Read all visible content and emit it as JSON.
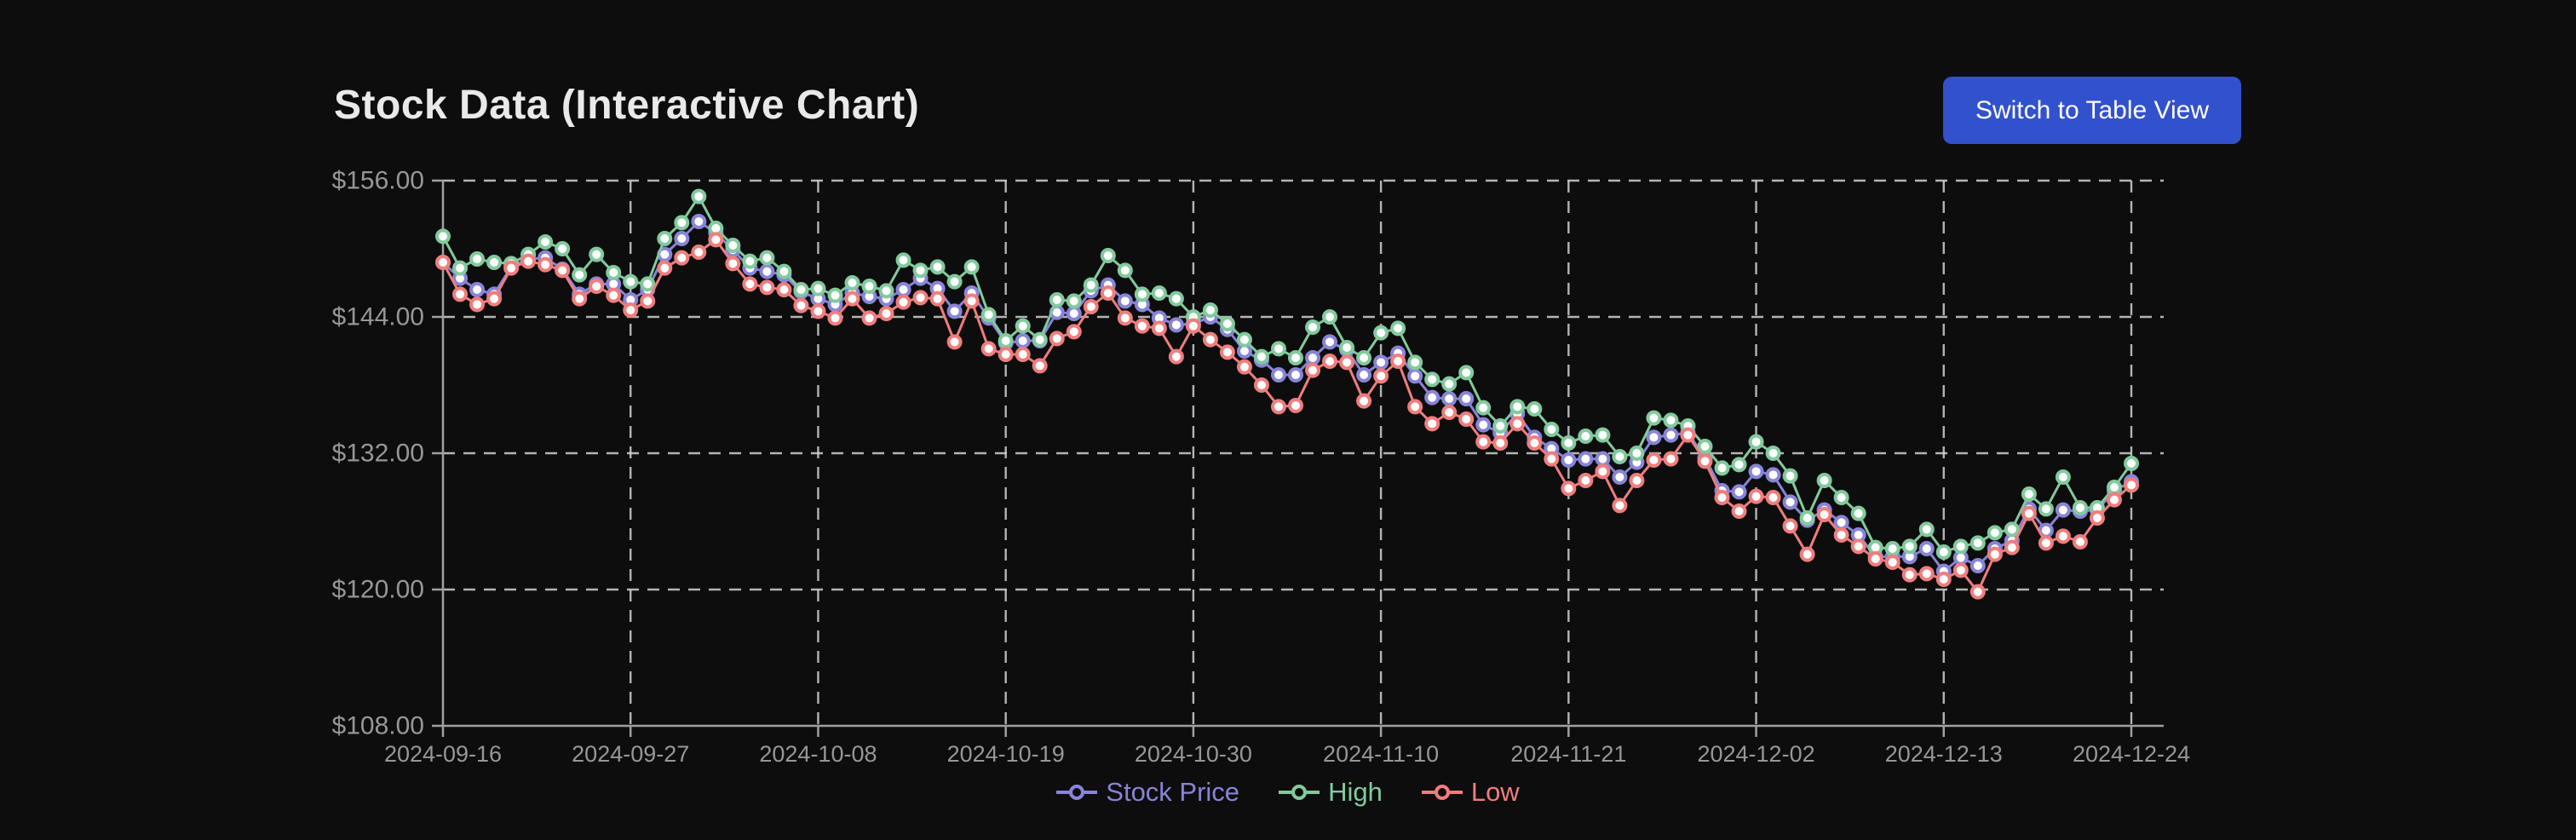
{
  "page": {
    "background": "#0d0d0d"
  },
  "header": {
    "title": "Stock Data (Interactive Chart)",
    "view_toggle_label": "Switch to Table View",
    "button_color": "#3251cd",
    "button_text_color": "#ffffff",
    "title_color": "#e9e9e9"
  },
  "chart_data": {
    "type": "line",
    "title": "Stock Data (Interactive Chart)",
    "grid": "dashed",
    "legend_position": "bottom",
    "ylim": [
      108,
      156
    ],
    "y_ticks": [
      156,
      144,
      132,
      120,
      108
    ],
    "y_tick_prefix": "$",
    "x_tick_indices": [
      0,
      11,
      22,
      33,
      44,
      55,
      66,
      77,
      88,
      99
    ],
    "axis_color": "#a0a0a0",
    "grid_color": "#d2d2d2",
    "tick_label_color": "#979797",
    "marker_fill": "#ffffff",
    "x": [
      "2024-09-16",
      "2024-09-17",
      "2024-09-18",
      "2024-09-19",
      "2024-09-20",
      "2024-09-21",
      "2024-09-22",
      "2024-09-23",
      "2024-09-24",
      "2024-09-25",
      "2024-09-26",
      "2024-09-27",
      "2024-09-28",
      "2024-09-29",
      "2024-09-30",
      "2024-10-01",
      "2024-10-02",
      "2024-10-03",
      "2024-10-04",
      "2024-10-05",
      "2024-10-06",
      "2024-10-07",
      "2024-10-08",
      "2024-10-09",
      "2024-10-10",
      "2024-10-11",
      "2024-10-12",
      "2024-10-13",
      "2024-10-14",
      "2024-10-15",
      "2024-10-16",
      "2024-10-17",
      "2024-10-18",
      "2024-10-19",
      "2024-10-20",
      "2024-10-21",
      "2024-10-22",
      "2024-10-23",
      "2024-10-24",
      "2024-10-25",
      "2024-10-26",
      "2024-10-27",
      "2024-10-28",
      "2024-10-29",
      "2024-10-30",
      "2024-10-31",
      "2024-11-01",
      "2024-11-02",
      "2024-11-03",
      "2024-11-04",
      "2024-11-05",
      "2024-11-06",
      "2024-11-07",
      "2024-11-08",
      "2024-11-09",
      "2024-11-10",
      "2024-11-11",
      "2024-11-12",
      "2024-11-13",
      "2024-11-14",
      "2024-11-15",
      "2024-11-16",
      "2024-11-17",
      "2024-11-18",
      "2024-11-19",
      "2024-11-20",
      "2024-11-21",
      "2024-11-22",
      "2024-11-23",
      "2024-11-24",
      "2024-11-25",
      "2024-11-26",
      "2024-11-27",
      "2024-11-28",
      "2024-11-29",
      "2024-11-30",
      "2024-12-01",
      "2024-12-02",
      "2024-12-03",
      "2024-12-04",
      "2024-12-05",
      "2024-12-06",
      "2024-12-07",
      "2024-12-08",
      "2024-12-09",
      "2024-12-10",
      "2024-12-11",
      "2024-12-12",
      "2024-12-13",
      "2024-12-14",
      "2024-12-15",
      "2024-12-16",
      "2024-12-17",
      "2024-12-18",
      "2024-12-19",
      "2024-12-20",
      "2024-12-21",
      "2024-12-22",
      "2024-12-23",
      "2024-12-24"
    ],
    "series": [
      {
        "name": "Stock Price",
        "color": "#8884d8",
        "values": [
          148.8,
          147.4,
          146.4,
          146.0,
          148.4,
          149.1,
          149.2,
          148.2,
          146.0,
          146.9,
          146.9,
          145.5,
          146.4,
          149.5,
          150.9,
          152.4,
          151.4,
          149.9,
          148.3,
          148.0,
          147.7,
          146.2,
          145.6,
          145.1,
          146.1,
          145.8,
          145.6,
          146.4,
          147.4,
          146.5,
          144.5,
          146.1,
          143.9,
          141.7,
          141.9,
          141.9,
          144.4,
          144.3,
          146.3,
          146.8,
          145.4,
          145.1,
          143.9,
          143.3,
          143.4,
          144.0,
          142.9,
          141.0,
          140.2,
          138.9,
          138.9,
          140.4,
          141.8,
          141.1,
          138.9,
          140.0,
          140.8,
          138.8,
          136.9,
          136.8,
          136.8,
          134.5,
          133.8,
          135.5,
          133.4,
          132.4,
          131.4,
          131.5,
          131.5,
          129.9,
          131.2,
          133.4,
          133.6,
          133.8,
          131.6,
          128.7,
          128.6,
          130.4,
          130.1,
          127.7,
          126.1,
          127.0,
          125.9,
          124.8,
          122.9,
          122.9,
          122.9,
          123.6,
          121.6,
          122.8,
          122.1,
          123.6,
          124.3,
          127.1,
          125.2,
          127.0,
          126.9,
          127.0,
          128.7,
          129.5
        ]
      },
      {
        "name": "High",
        "color": "#82ca9d",
        "values": [
          151.1,
          148.3,
          149.1,
          148.8,
          148.7,
          149.5,
          150.6,
          150.0,
          147.7,
          149.5,
          147.9,
          147.1,
          146.9,
          150.9,
          152.3,
          154.6,
          151.8,
          150.3,
          148.9,
          149.2,
          148.0,
          146.4,
          146.5,
          145.9,
          147.0,
          146.7,
          146.3,
          149.0,
          148.1,
          148.4,
          147.1,
          148.4,
          144.2,
          141.9,
          143.2,
          142.0,
          145.5,
          145.4,
          146.8,
          149.4,
          148.1,
          146.0,
          146.1,
          145.6,
          144.0,
          144.6,
          143.4,
          142.0,
          140.5,
          141.2,
          140.4,
          143.1,
          144.0,
          141.3,
          140.4,
          142.6,
          143.0,
          140.0,
          138.5,
          138.1,
          139.1,
          136.0,
          134.4,
          136.1,
          135.9,
          134.1,
          132.9,
          133.5,
          133.6,
          131.7,
          132.0,
          135.1,
          134.9,
          134.4,
          132.6,
          130.7,
          131.0,
          133.0,
          132.0,
          130.0,
          126.3,
          129.6,
          128.1,
          126.7,
          123.7,
          123.6,
          123.8,
          125.3,
          123.3,
          123.8,
          124.1,
          125.0,
          125.3,
          128.4,
          127.1,
          129.9,
          127.2,
          127.2,
          129.0,
          131.1
        ]
      },
      {
        "name": "Low",
        "color": "#f07d7d",
        "values": [
          148.8,
          146.0,
          145.1,
          145.6,
          148.3,
          148.9,
          148.6,
          148.1,
          145.6,
          146.7,
          145.9,
          144.6,
          145.4,
          148.3,
          149.2,
          149.7,
          150.8,
          148.7,
          146.9,
          146.6,
          146.4,
          145.0,
          144.5,
          143.9,
          145.6,
          143.9,
          144.3,
          145.3,
          145.7,
          145.6,
          141.8,
          145.4,
          141.2,
          140.7,
          140.7,
          139.7,
          142.1,
          142.7,
          144.9,
          146.1,
          143.9,
          143.2,
          143.0,
          140.5,
          143.2,
          142.0,
          140.9,
          139.6,
          138.0,
          136.1,
          136.2,
          139.3,
          140.1,
          140.0,
          136.6,
          138.8,
          140.1,
          136.1,
          134.6,
          135.6,
          135.0,
          133.0,
          132.9,
          134.6,
          132.9,
          131.5,
          128.9,
          129.6,
          130.4,
          127.4,
          129.6,
          131.4,
          131.5,
          133.6,
          131.3,
          128.1,
          126.9,
          128.2,
          128.1,
          125.6,
          123.1,
          126.6,
          124.8,
          123.8,
          122.7,
          122.4,
          121.3,
          121.4,
          120.9,
          121.7,
          119.8,
          123.1,
          123.7,
          126.7,
          124.1,
          124.7,
          124.2,
          126.3,
          127.9,
          129.2
        ]
      }
    ]
  }
}
